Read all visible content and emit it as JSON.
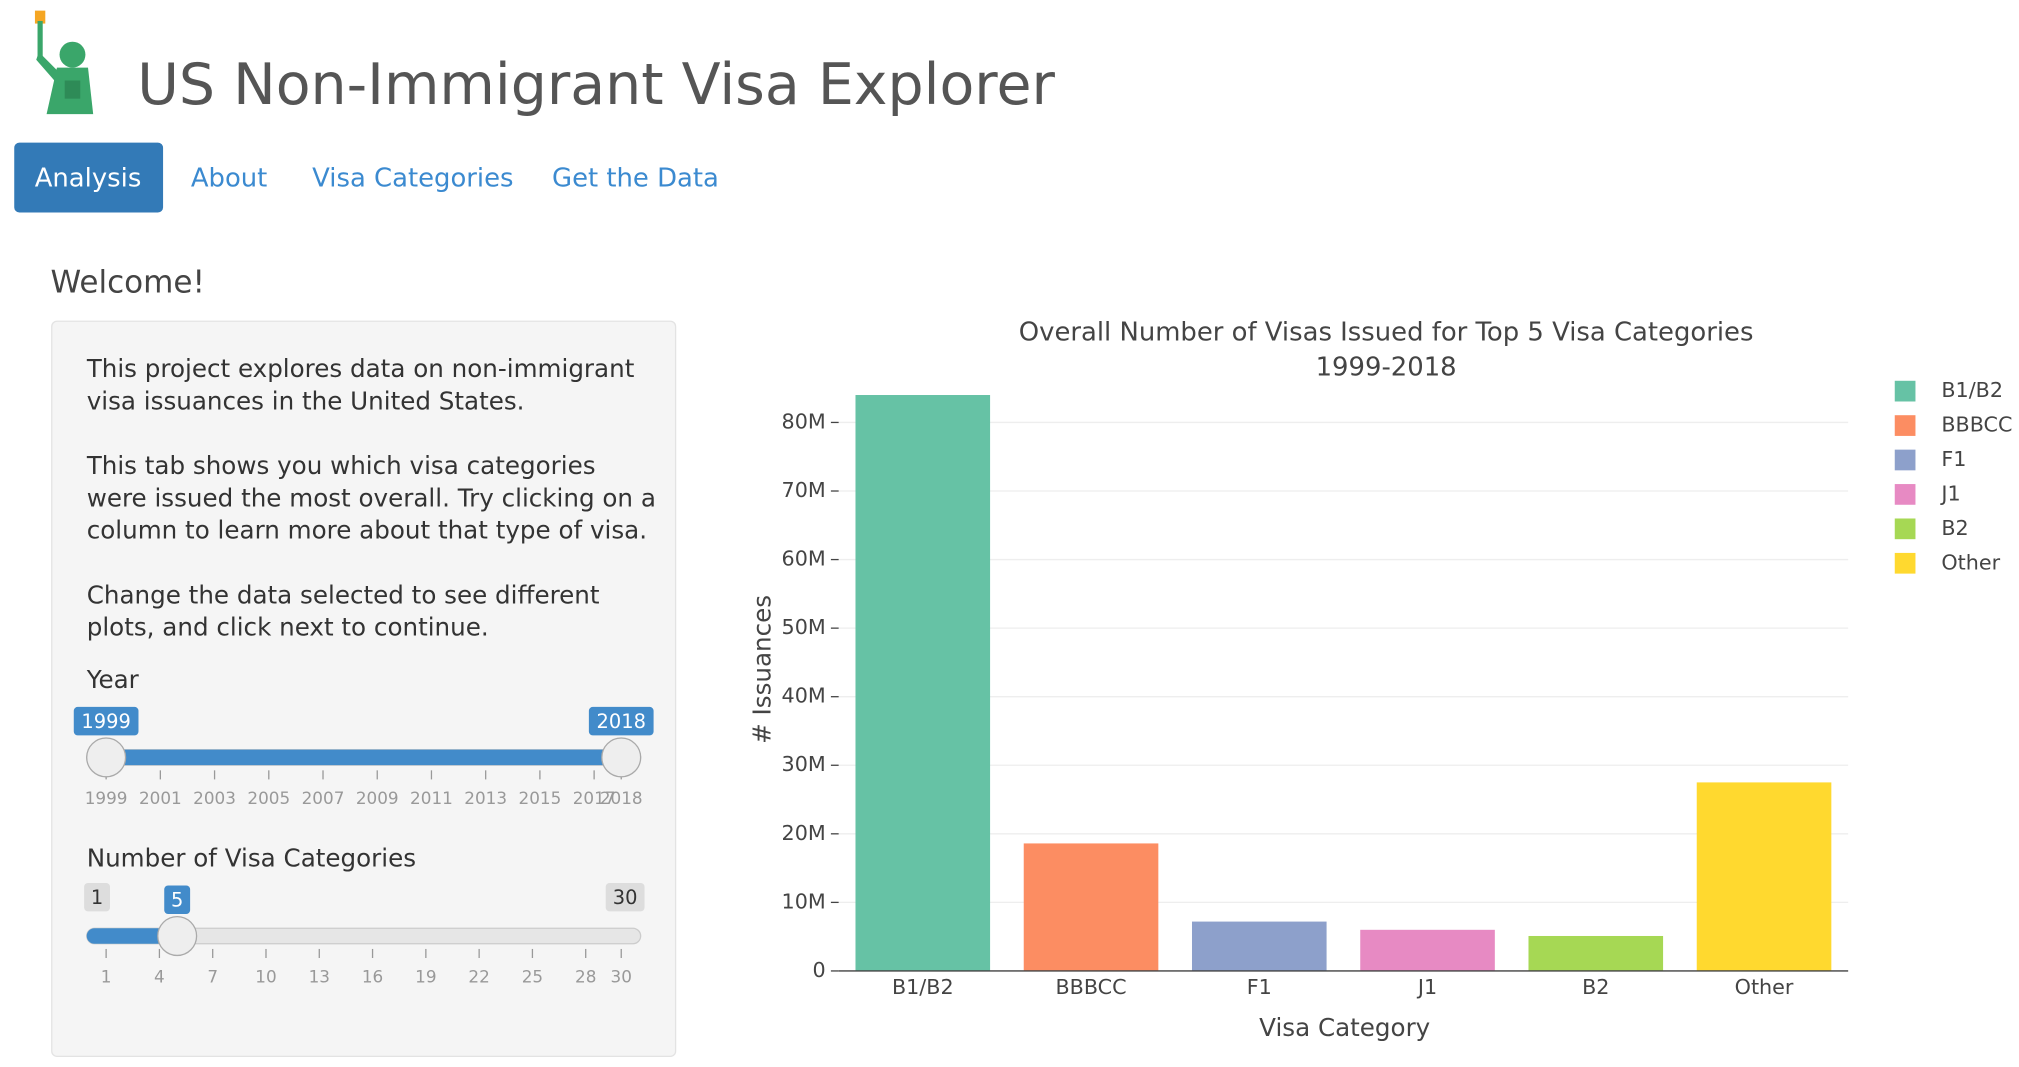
{
  "header": {
    "title": "US Non-Immigrant Visa Explorer"
  },
  "nav": {
    "tabs": [
      "Analysis",
      "About",
      "Visa Categories",
      "Get the Data"
    ],
    "active": 0
  },
  "sidebar": {
    "heading": "Welcome!",
    "paragraphs": [
      "This project explores data on non-immigrant visa issuances in the United States.",
      "This tab shows you which visa categories were issued the most overall. Try clicking on a column to learn more about that type of visa.",
      "Change the data selected to see different plots, and click next to continue."
    ],
    "year_slider": {
      "label": "Year",
      "min": 1999,
      "max": 2018,
      "from": 1999,
      "to": 2018,
      "ticks": [
        1999,
        2001,
        2003,
        2005,
        2007,
        2009,
        2011,
        2013,
        2015,
        2017,
        2018
      ]
    },
    "category_slider": {
      "label": "Number of Visa Categories",
      "min": 1,
      "max": 30,
      "value": 5,
      "ticks": [
        1,
        4,
        7,
        10,
        13,
        16,
        19,
        22,
        25,
        28,
        30
      ]
    }
  },
  "chart_data": {
    "type": "bar",
    "title": "Overall Number of Visas Issued for Top 5 Visa Categories",
    "subtitle": "1999-2018",
    "x_label": "Visa Category",
    "y_label": "# Issuances",
    "categories": [
      "B1/B2",
      "BBBCC",
      "F1",
      "J1",
      "B2",
      "Other"
    ],
    "values": [
      84000000,
      18600000,
      7200000,
      6000000,
      5100000,
      27500000
    ],
    "colors": [
      "#66c2a5",
      "#fc8d62",
      "#8da0cb",
      "#e78ac3",
      "#a6d854",
      "#ffd92f"
    ],
    "ylim": [
      0,
      84000000
    ],
    "yticks": [
      0,
      {
        "value": 10000000,
        "label": "10M"
      },
      {
        "value": 20000000,
        "label": "20M"
      },
      {
        "value": 30000000,
        "label": "30M"
      },
      {
        "value": 40000000,
        "label": "40M"
      },
      {
        "value": 50000000,
        "label": "50M"
      },
      {
        "value": 60000000,
        "label": "60M"
      },
      {
        "value": 70000000,
        "label": "70M"
      },
      {
        "value": 80000000,
        "label": "80M"
      }
    ],
    "grid": true,
    "legend": "top-right"
  }
}
